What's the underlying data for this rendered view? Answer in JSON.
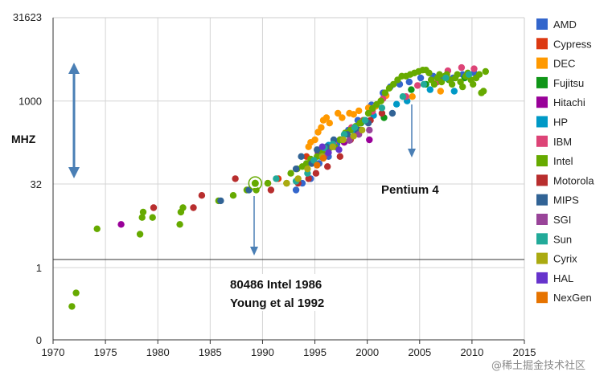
{
  "chart_data": {
    "type": "scatter",
    "title": "",
    "xlabel": "",
    "ylabel": "MHZ",
    "x_ticks": [
      "1970",
      "1975",
      "1980",
      "1985",
      "1990",
      "1995",
      "2000",
      "2005",
      "2010",
      "2015"
    ],
    "y_ticks": [
      "0",
      "1",
      "32",
      "1000",
      "31623"
    ],
    "xlim": [
      1970,
      2015
    ],
    "ylim_log10": [
      -1.3,
      4.5
    ],
    "y_scale": "log",
    "grid": true,
    "legend_position": "right",
    "series": [
      {
        "name": "AMD",
        "color": "#3366cc",
        "points": [
          [
            1993.2,
            25
          ],
          [
            1993.8,
            33
          ],
          [
            1994.6,
            40
          ],
          [
            1995.4,
            75
          ],
          [
            1996.3,
            100
          ],
          [
            1997.1,
            166
          ],
          [
            1998.2,
            300
          ],
          [
            1999.1,
            450
          ],
          [
            2000.4,
            850
          ],
          [
            2001.5,
            1400
          ],
          [
            2002.2,
            1800
          ],
          [
            2003.1,
            2000
          ],
          [
            2004.0,
            2200
          ],
          [
            2005.1,
            2600
          ],
          [
            2006.3,
            2800
          ],
          [
            2007.1,
            2400
          ],
          [
            2008.2,
            2600
          ],
          [
            2009.1,
            3000
          ],
          [
            2010.2,
            3200
          ]
        ]
      },
      {
        "name": "Cypress",
        "color": "#dc3912",
        "points": [
          [
            1990.5,
            33
          ],
          [
            1991.5,
            40
          ],
          [
            1994.2,
            100
          ]
        ]
      },
      {
        "name": "DEC",
        "color": "#ff9900",
        "points": [
          [
            1994.4,
            150
          ],
          [
            1994.6,
            180
          ],
          [
            1995.0,
            200
          ],
          [
            1995.3,
            275
          ],
          [
            1995.6,
            333
          ],
          [
            1995.8,
            450
          ],
          [
            1996.1,
            500
          ],
          [
            1996.4,
            400
          ],
          [
            1997.2,
            600
          ],
          [
            1997.6,
            500
          ],
          [
            1998.3,
            600
          ],
          [
            1998.7,
            575
          ],
          [
            1999.2,
            667
          ],
          [
            2000.1,
            750
          ],
          [
            2000.8,
            800
          ],
          [
            2001.3,
            1000
          ],
          [
            2001.8,
            1250
          ],
          [
            2004.3,
            1200
          ],
          [
            2007.0,
            1500
          ]
        ]
      },
      {
        "name": "Fujitsu",
        "color": "#109618",
        "points": [
          [
            1997.4,
            200
          ],
          [
            1999.4,
            400
          ],
          [
            2001.6,
            500
          ],
          [
            2004.2,
            1600
          ],
          [
            2005.6,
            2000
          ],
          [
            2007.8,
            2400
          ],
          [
            2009.3,
            2600
          ]
        ]
      },
      {
        "name": "Hitachi",
        "color": "#990099",
        "points": [
          [
            1976.5,
            6
          ],
          [
            1995.3,
            120
          ],
          [
            1997.8,
            180
          ],
          [
            1999.0,
            266
          ],
          [
            2000.2,
            200
          ]
        ]
      },
      {
        "name": "HP",
        "color": "#0099c6",
        "points": [
          [
            1995.5,
            100
          ],
          [
            1996.3,
            160
          ],
          [
            1997.5,
            200
          ],
          [
            1998.6,
            300
          ],
          [
            1999.7,
            440
          ],
          [
            2000.6,
            550
          ],
          [
            2002.8,
            875
          ],
          [
            2003.8,
            1000
          ],
          [
            2006.0,
            1600
          ],
          [
            2008.3,
            1500
          ]
        ]
      },
      {
        "name": "IBM",
        "color": "#dd4477",
        "points": [
          [
            1995.6,
            133
          ],
          [
            1996.8,
            166
          ],
          [
            1997.4,
            200
          ],
          [
            1998.5,
            333
          ],
          [
            1999.6,
            450
          ],
          [
            2000.5,
            650
          ],
          [
            2001.5,
            1100
          ],
          [
            2003.7,
            1200
          ],
          [
            2004.8,
            1900
          ],
          [
            2006.7,
            2200
          ],
          [
            2007.7,
            3500
          ],
          [
            2009.0,
            4000
          ],
          [
            2010.2,
            3800
          ]
        ]
      },
      {
        "name": "Intel",
        "color": "#66aa00",
        "points": [
          [
            1971.8,
            0.2
          ],
          [
            1972.2,
            0.35
          ],
          [
            1974.2,
            5
          ],
          [
            1978.3,
            4
          ],
          [
            1978.5,
            8
          ],
          [
            1978.6,
            10
          ],
          [
            1979.5,
            8
          ],
          [
            1982.1,
            6
          ],
          [
            1982.2,
            10
          ],
          [
            1982.4,
            12
          ],
          [
            1985.8,
            16
          ],
          [
            1987.2,
            20
          ],
          [
            1988.5,
            25
          ],
          [
            1989.2,
            33
          ],
          [
            1989.4,
            25
          ],
          [
            1990.5,
            33
          ],
          [
            1992.3,
            33
          ],
          [
            1992.7,
            50
          ],
          [
            1993.3,
            60
          ],
          [
            1993.8,
            66
          ],
          [
            1994.2,
            75
          ],
          [
            1994.6,
            90
          ],
          [
            1995.2,
            100
          ],
          [
            1995.7,
            120
          ],
          [
            1996.3,
            133
          ],
          [
            1996.9,
            150
          ],
          [
            1997.4,
            200
          ],
          [
            1997.9,
            266
          ],
          [
            1998.4,
            300
          ],
          [
            1998.9,
            350
          ],
          [
            1999.3,
            400
          ],
          [
            1999.7,
            450
          ],
          [
            2000.1,
            600
          ],
          [
            2000.5,
            733
          ],
          [
            2000.9,
            866
          ],
          [
            2001.3,
            1000
          ],
          [
            2001.7,
            1400
          ],
          [
            2002.1,
            1700
          ],
          [
            2002.5,
            2000
          ],
          [
            2002.9,
            2400
          ],
          [
            2003.3,
            2800
          ],
          [
            2003.7,
            2800
          ],
          [
            2004.1,
            3000
          ],
          [
            2004.5,
            3200
          ],
          [
            2004.9,
            3400
          ],
          [
            2005.3,
            3600
          ],
          [
            2005.6,
            3600
          ],
          [
            2005.9,
            3200
          ],
          [
            2006.1,
            2400
          ],
          [
            2006.4,
            2000
          ],
          [
            2006.7,
            2600
          ],
          [
            2006.9,
            3000
          ],
          [
            2007.1,
            2200
          ],
          [
            2007.4,
            2800
          ],
          [
            2007.6,
            3000
          ],
          [
            2007.9,
            2400
          ],
          [
            2008.1,
            2000
          ],
          [
            2008.4,
            2600
          ],
          [
            2008.6,
            3000
          ],
          [
            2008.9,
            2200
          ],
          [
            2009.1,
            1800
          ],
          [
            2009.4,
            2800
          ],
          [
            2009.6,
            3200
          ],
          [
            2009.9,
            2400
          ],
          [
            2010.1,
            2000
          ],
          [
            2010.4,
            2600
          ],
          [
            2010.7,
            3000
          ],
          [
            2010.9,
            1400
          ],
          [
            2011.1,
            1500
          ],
          [
            2011.3,
            3400
          ]
        ]
      },
      {
        "name": "Motorola",
        "color": "#b82e2e",
        "points": [
          [
            1979.6,
            12
          ],
          [
            1983.4,
            12
          ],
          [
            1984.2,
            20
          ],
          [
            1987.4,
            40
          ],
          [
            1990.8,
            25
          ],
          [
            1993.4,
            33
          ],
          [
            1994.4,
            40
          ],
          [
            1995.1,
            50
          ],
          [
            1996.2,
            66
          ],
          [
            1997.4,
            100
          ],
          [
            1998.4,
            200
          ],
          [
            1999.3,
            300
          ],
          [
            2000.3,
            450
          ],
          [
            2001.4,
            600
          ]
        ]
      },
      {
        "name": "MIPS",
        "color": "#316395",
        "points": [
          [
            1986.0,
            16
          ],
          [
            1988.7,
            25
          ],
          [
            1993.2,
            60
          ],
          [
            1993.7,
            100
          ],
          [
            1994.7,
            75
          ],
          [
            1995.2,
            133
          ],
          [
            1996.1,
            150
          ],
          [
            1996.8,
            200
          ],
          [
            1998.1,
            250
          ],
          [
            1999.1,
            300
          ],
          [
            2000.1,
            400
          ],
          [
            2002.4,
            600
          ]
        ]
      },
      {
        "name": "SGI",
        "color": "#994499",
        "points": [
          [
            1995.9,
            100
          ],
          [
            1996.7,
            150
          ],
          [
            1998.3,
            195
          ],
          [
            1999.2,
            250
          ],
          [
            2000.2,
            300
          ]
        ]
      },
      {
        "name": "Sun",
        "color": "#22aa99",
        "points": [
          [
            1991.3,
            40
          ],
          [
            1993.2,
            36
          ],
          [
            1994.3,
            50
          ],
          [
            1994.9,
            85
          ],
          [
            1995.9,
            143
          ],
          [
            1996.7,
            167
          ],
          [
            1997.8,
            250
          ],
          [
            1998.8,
            333
          ],
          [
            1999.8,
            450
          ],
          [
            2001.4,
            750
          ],
          [
            2003.4,
            1200
          ],
          [
            2005.4,
            2000
          ],
          [
            2007.5,
            2600
          ],
          [
            2009.7,
            3000
          ]
        ]
      },
      {
        "name": "Cyrix",
        "color": "#aaaa11",
        "points": [
          [
            1992.3,
            33
          ],
          [
            1993.4,
            40
          ],
          [
            1994.3,
            60
          ],
          [
            1995.7,
            100
          ],
          [
            1996.7,
            150
          ],
          [
            1997.7,
            200
          ],
          [
            1998.7,
            233
          ],
          [
            1999.5,
            300
          ]
        ]
      },
      {
        "name": "HAL",
        "color": "#6633cc",
        "points": [
          [
            1995.7,
            150
          ],
          [
            1996.3,
            118
          ],
          [
            1997.3,
            133
          ]
        ]
      },
      {
        "name": "NexGen",
        "color": "#e67300",
        "points": [
          [
            1995.2,
            70
          ],
          [
            1995.8,
            93
          ]
        ]
      }
    ],
    "highlighted_point": [
      1989.3,
      33
    ],
    "annotations": [
      {
        "lines": [
          "80486 Intel 1986",
          "Young et al 1992"
        ]
      },
      {
        "lines": [
          "Pentium 4"
        ]
      }
    ],
    "watermark": "@稀土掘金技术社区"
  }
}
